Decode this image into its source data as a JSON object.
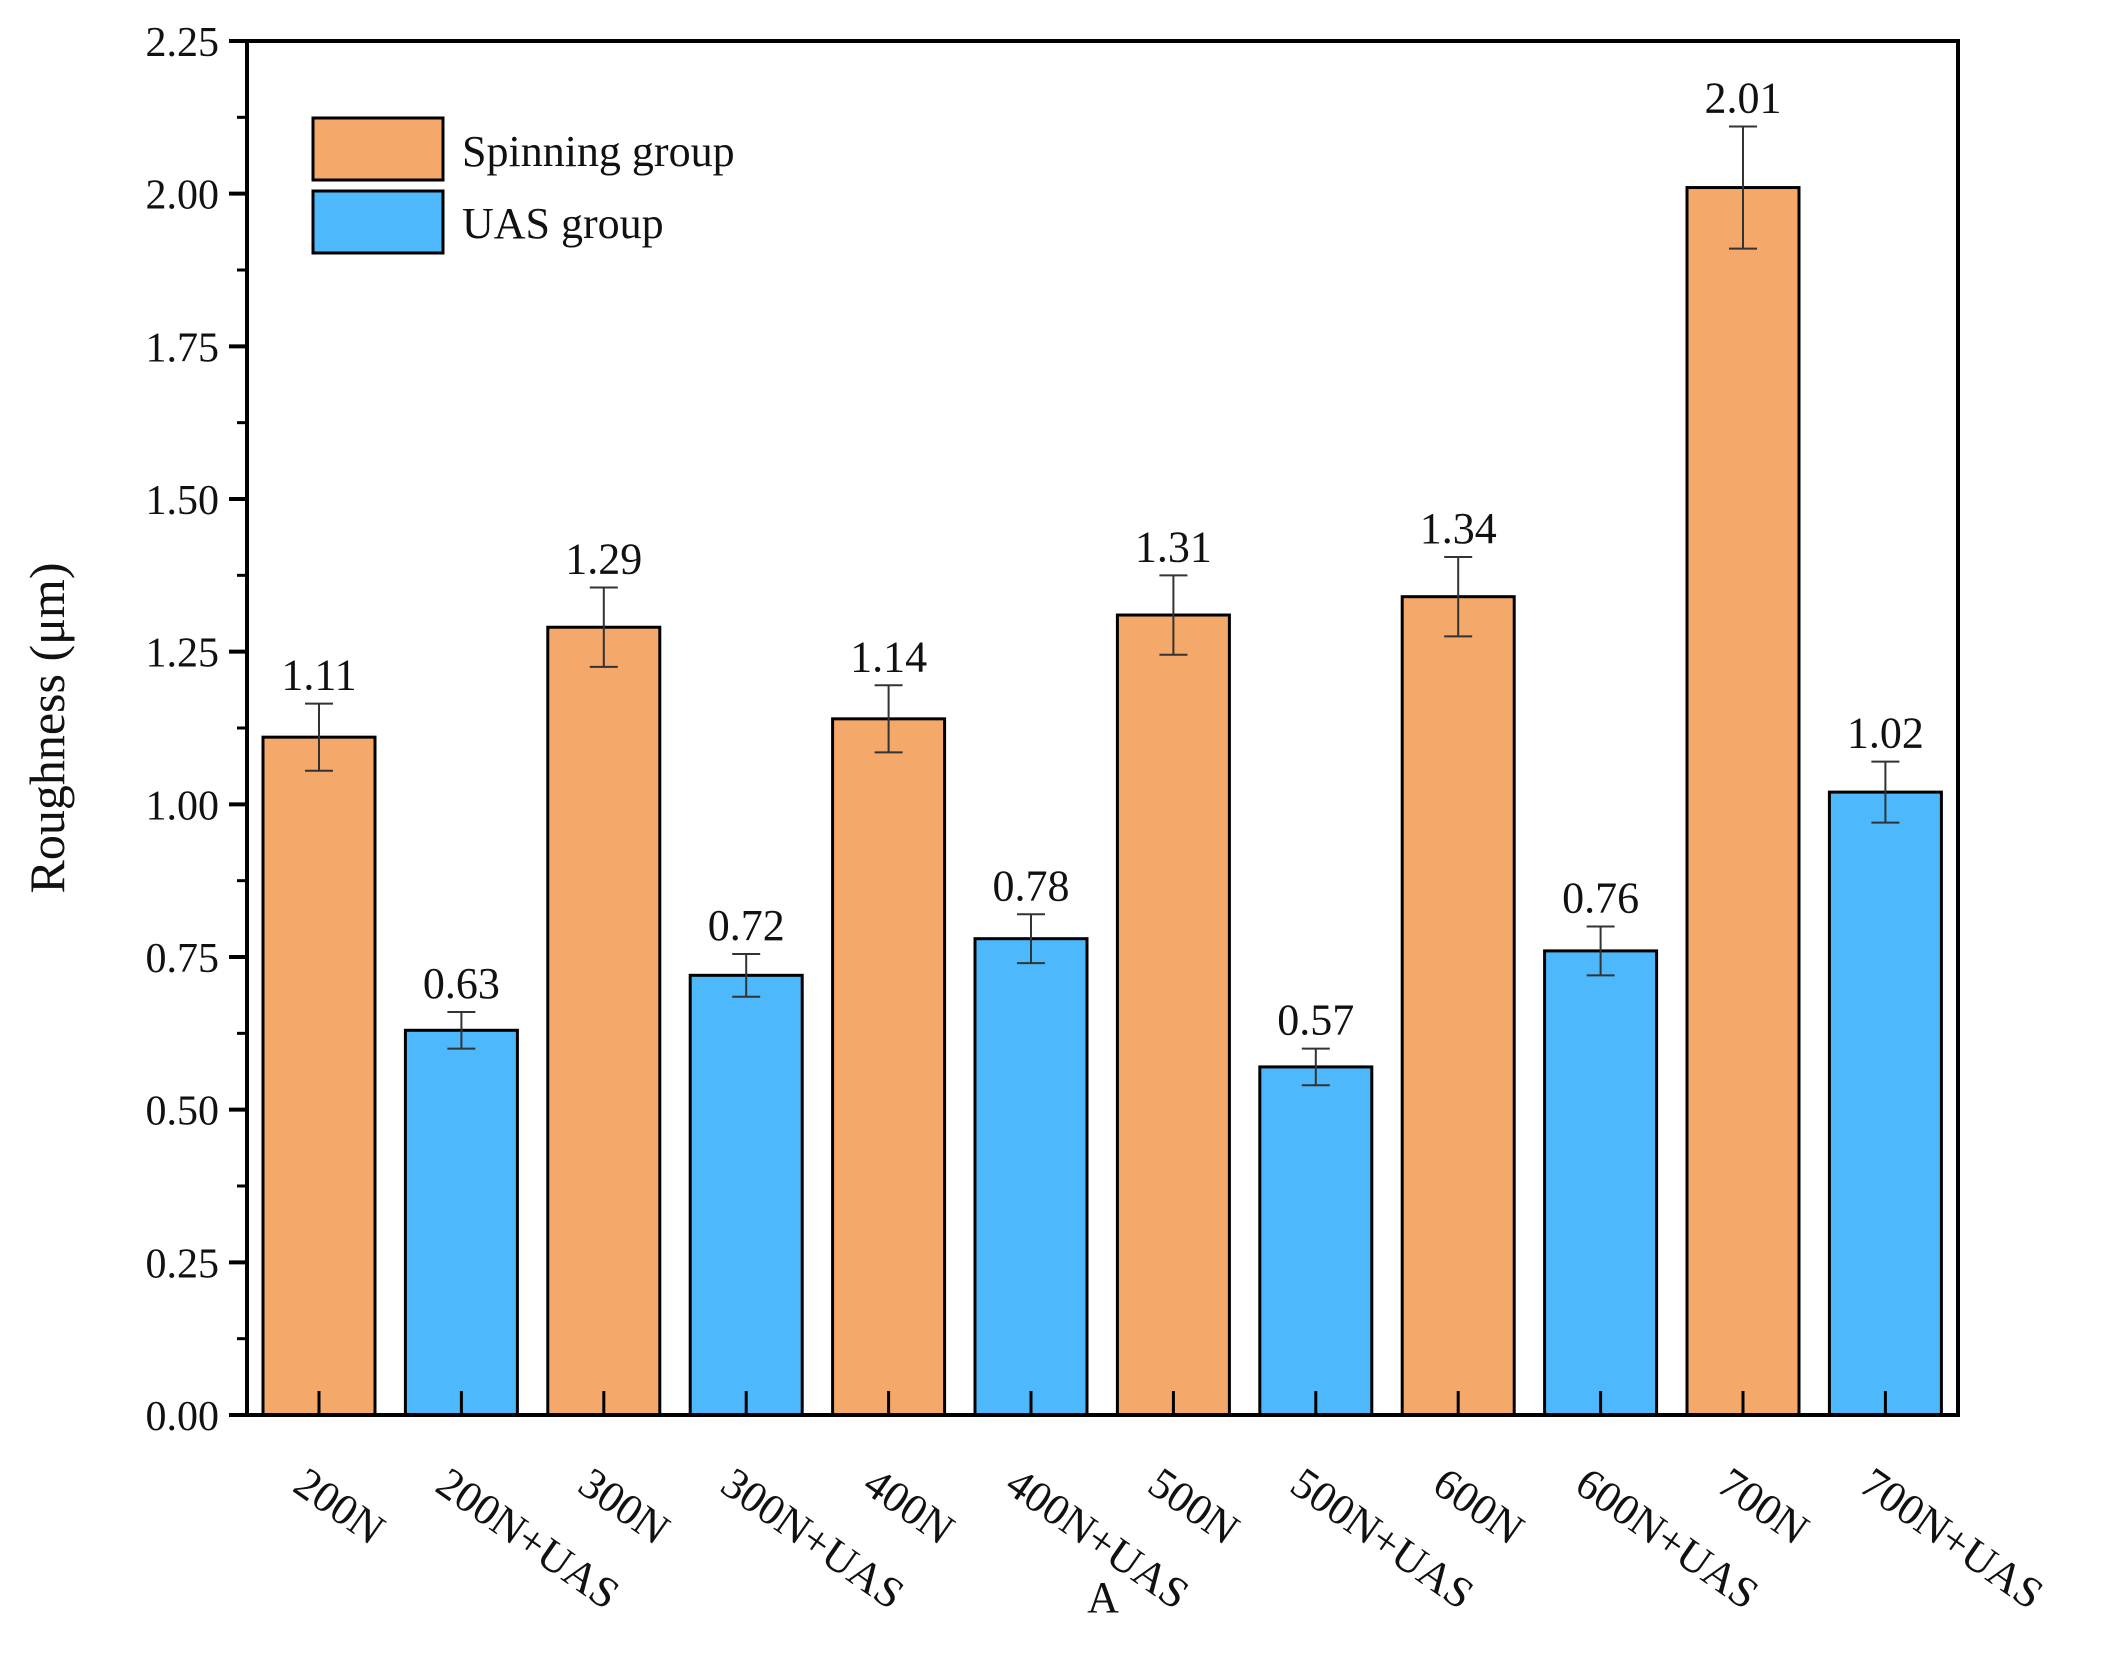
{
  "chart_data": {
    "type": "bar",
    "title": "",
    "xlabel": "",
    "ylabel": "Roughness (μm)",
    "ylim": [
      0,
      2.25
    ],
    "yticks": [
      "0.00",
      "0.25",
      "0.50",
      "0.75",
      "1.00",
      "1.25",
      "1.50",
      "1.75",
      "2.00",
      "2.25"
    ],
    "grid": false,
    "legend_position": "top-left",
    "categories": [
      "200N",
      "200N+UAS",
      "300N",
      "300N+UAS",
      "400N",
      "400N+UAS",
      "500N",
      "500N+UAS",
      "600N",
      "600N+UAS",
      "700N",
      "700N+UAS"
    ],
    "series": [
      {
        "name": "Spinning group",
        "color": "#F4A869"
      },
      {
        "name": "UAS group",
        "color": "#4DB8FC"
      }
    ],
    "values": [
      1.11,
      0.63,
      1.29,
      0.72,
      1.14,
      0.78,
      1.31,
      0.57,
      1.34,
      0.76,
      2.01,
      1.02
    ],
    "value_labels": [
      "1.11",
      "0.63",
      "1.29",
      "0.72",
      "1.14",
      "0.78",
      "1.31",
      "0.57",
      "1.34",
      "0.76",
      "2.01",
      "1.02"
    ],
    "series_index": [
      0,
      1,
      0,
      1,
      0,
      1,
      0,
      1,
      0,
      1,
      0,
      1
    ],
    "errors": [
      0.055,
      0.03,
      0.065,
      0.035,
      0.055,
      0.04,
      0.065,
      0.03,
      0.065,
      0.04,
      0.1,
      0.05
    ],
    "annotations": [
      "A"
    ]
  }
}
